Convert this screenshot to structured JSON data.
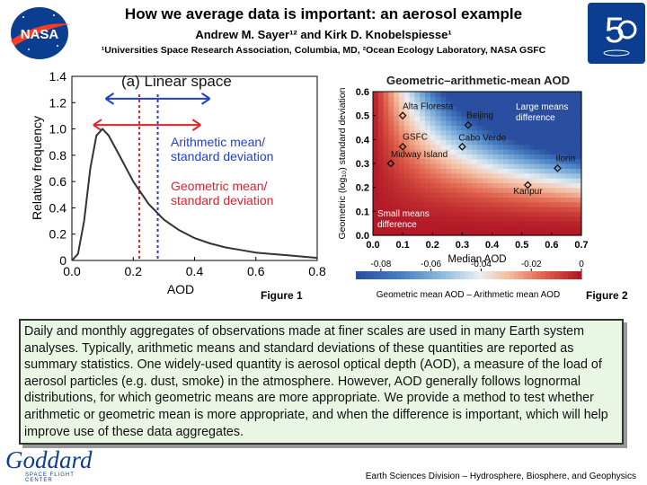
{
  "header": {
    "title": "How we average data is important: an aerosol example",
    "authors": "Andrew M. Sayer¹² and Kirk D. Knobelspiesse¹",
    "affiliations": "¹Universities Space Research Association, Columbia, MD, ²Ocean Ecology Laboratory, NASA GSFC",
    "nasa_logo_text": "NASA",
    "anniversary_logo_text": "5"
  },
  "figure1": {
    "caption": "Figure 1",
    "panel_title": "(a) Linear space",
    "ylabel": "Relative frequency",
    "xlabel": "AOD",
    "legend_arithmetic": [
      "Arithmetic mean/",
      "standard deviation"
    ],
    "legend_geometric": [
      "Geometric mean/",
      "standard deviation"
    ],
    "colors": {
      "arithmetic": "#1f3fd0",
      "geometric": "#e0222a",
      "curve": "#333333"
    },
    "chart_data": {
      "type": "line",
      "title": "(a) Linear space",
      "xlabel": "AOD",
      "ylabel": "Relative frequency",
      "xlim": [
        0,
        0.8
      ],
      "ylim": [
        0,
        1.4
      ],
      "xticks": [
        "0.0",
        "0.2",
        "0.4",
        "0.6",
        "0.8"
      ],
      "yticks": [
        "0",
        "0.2",
        "0.4",
        "0.6",
        "0.8",
        "1.0",
        "1.2",
        "1.4"
      ],
      "x": [
        0.0,
        0.02,
        0.04,
        0.06,
        0.08,
        0.1,
        0.12,
        0.15,
        0.2,
        0.25,
        0.3,
        0.35,
        0.4,
        0.45,
        0.5,
        0.55,
        0.6,
        0.65,
        0.7,
        0.75,
        0.8
      ],
      "y": [
        0.0,
        0.05,
        0.3,
        0.7,
        0.95,
        1.0,
        0.95,
        0.82,
        0.6,
        0.43,
        0.31,
        0.23,
        0.17,
        0.13,
        0.1,
        0.08,
        0.06,
        0.05,
        0.04,
        0.03,
        0.02
      ],
      "geometric_mean": 0.22,
      "arithmetic_mean": 0.28,
      "geometric_sd_range": [
        0.07,
        0.42
      ],
      "arithmetic_sd_range": [
        0.11,
        0.45
      ]
    }
  },
  "figure2": {
    "caption": "Figure 2",
    "panel_title": "Geometric–arithmetic-mean AOD",
    "ylabel": "Geometric (log₁₀) standard deviation",
    "xlabel": "Median AOD",
    "colorbar_label": "Geometric mean AOD – Arithmetic mean AOD",
    "annotation_large": [
      "Large means",
      "difference"
    ],
    "annotation_small": [
      "Small means",
      "difference"
    ],
    "chart_data": {
      "type": "heatmap",
      "title": "Geometric–arithmetic-mean AOD",
      "xlabel": "Median AOD",
      "ylabel": "Geometric (log₁₀) standard deviation",
      "xlim": [
        0,
        0.7
      ],
      "ylim": [
        0,
        0.6
      ],
      "xticks": [
        "0.0",
        "0.1",
        "0.2",
        "0.3",
        "0.4",
        "0.5",
        "0.6",
        "0.7"
      ],
      "yticks": [
        "0.0",
        "0.1",
        "0.2",
        "0.3",
        "0.4",
        "0.5",
        "0.6"
      ],
      "colorbar_ticks": [
        "-0.08",
        "-0.06",
        "-0.04",
        "-0.02",
        "0"
      ],
      "sites": [
        {
          "name": "Alta Floresta",
          "x": 0.1,
          "y": 0.5
        },
        {
          "name": "Beijing",
          "x": 0.32,
          "y": 0.46
        },
        {
          "name": "GSFC",
          "x": 0.1,
          "y": 0.37
        },
        {
          "name": "Cabo Verde",
          "x": 0.3,
          "y": 0.37
        },
        {
          "name": "Midway Island",
          "x": 0.06,
          "y": 0.3
        },
        {
          "name": "Ilorin",
          "x": 0.62,
          "y": 0.28
        },
        {
          "name": "Kanpur",
          "x": 0.52,
          "y": 0.21
        }
      ]
    }
  },
  "summary": {
    "text": "Daily and monthly aggregates of observations made at finer scales are used in many Earth system analyses. Typically, arithmetic means and standard deviations of these quantities are reported as summary statistics. One widely-used quantity is aerosol optical depth (AOD), a measure of the load of aerosol particles (e.g. dust, smoke) in the atmosphere. However, AOD generally follows lognormal distributions, for which geometric means are more appropriate. We provide a method to test whether arithmetic or geometric mean is more appropriate, and when the difference is important, which will help improve use of these data aggregates."
  },
  "footer": {
    "goddard_logo_text": "Goddard",
    "goddard_subtext": "SPACE FLIGHT CENTER",
    "division": "Earth Sciences Division – Hydrosphere, Biosphere, and Geophysics"
  }
}
